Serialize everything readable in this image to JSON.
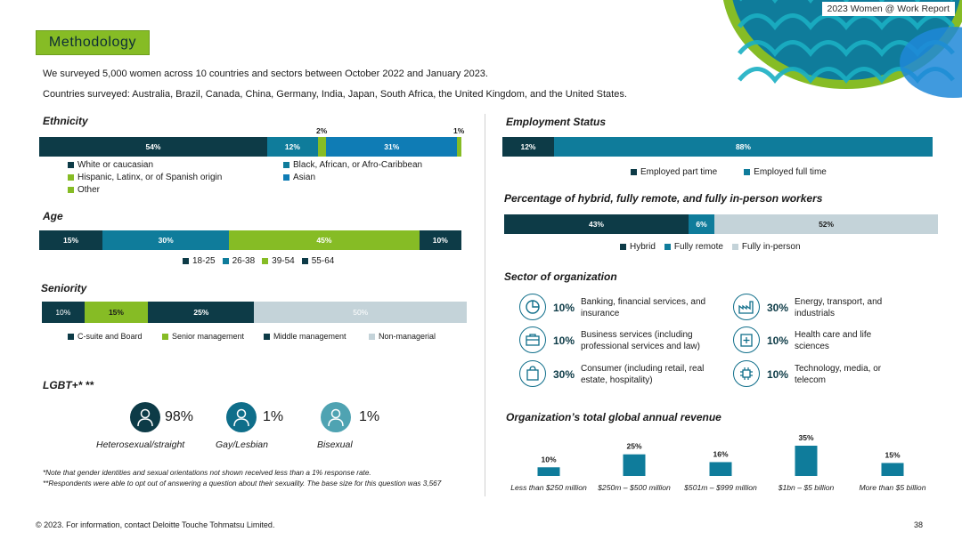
{
  "header": {
    "report_tag": "2023 Women @ Work Report",
    "title": "Methodology"
  },
  "intro": {
    "line1": "We surveyed 5,000 women across 10 countries and sectors between October 2022 and January 2023.",
    "line2": "Countries surveyed: Australia, Brazil, Canada, China, Germany, India, Japan, South Africa, the United Kingdom, and the United States."
  },
  "colors": {
    "dark": "#0d3b47",
    "teal": "#0f7c9b",
    "green": "#86bc25",
    "light": "#c4d3d9"
  },
  "ethnicity": {
    "title": "Ethnicity",
    "segments": [
      {
        "name": "White or caucasian",
        "value": 54,
        "label": "54%"
      },
      {
        "name": "Black, African, or Afro-Caribbean",
        "value": 12,
        "label": "12%"
      },
      {
        "name": "Hispanic, Latinx, or of Spanish origin",
        "value": 2,
        "label": "2%"
      },
      {
        "name": "Asian",
        "value": 31,
        "label": "31%"
      },
      {
        "name": "Other",
        "value": 1,
        "label": "1%"
      }
    ]
  },
  "age": {
    "title": "Age",
    "segments": [
      {
        "name": "18-25",
        "value": 15,
        "label": "15%"
      },
      {
        "name": "26-38",
        "value": 30,
        "label": "30%"
      },
      {
        "name": "39-54",
        "value": 45,
        "label": "45%"
      },
      {
        "name": "55-64",
        "value": 10,
        "label": "10%"
      }
    ]
  },
  "seniority": {
    "title": "Seniority",
    "segments": [
      {
        "name": "C-suite and Board",
        "value": 10,
        "label": "10%"
      },
      {
        "name": "Senior management",
        "value": 15,
        "label": "15%"
      },
      {
        "name": "Middle management",
        "value": 25,
        "label": "25%"
      },
      {
        "name": "Non-managerial",
        "value": 50,
        "label": "50%"
      }
    ]
  },
  "lgbt": {
    "title": "LGBT+* **",
    "items": [
      {
        "pct": "98%",
        "label": "Heterosexual/straight"
      },
      {
        "pct": "1%",
        "label": "Gay/Lesbian"
      },
      {
        "pct": "1%",
        "label": "Bisexual"
      }
    ],
    "note1": "*Note that gender identities and sexual orientations not shown received less than a 1% response rate.",
    "note2": "**Respondents were able to opt out of answering a question about their sexuality. The base size for this question was 3,567"
  },
  "employment": {
    "title": "Employment Status",
    "segments": [
      {
        "name": "Employed part time",
        "value": 12,
        "label": "12%"
      },
      {
        "name": "Employed full time",
        "value": 88,
        "label": "88%"
      }
    ]
  },
  "hybrid": {
    "title": "Percentage of hybrid, fully remote, and fully in-person workers",
    "segments": [
      {
        "name": "Hybrid",
        "value": 43,
        "label": "43%"
      },
      {
        "name": "Fully remote",
        "value": 6,
        "label": "6%"
      },
      {
        "name": "Fully in-person",
        "value": 52,
        "label": "52%"
      }
    ]
  },
  "sector": {
    "title": "Sector of organization",
    "items": [
      {
        "pct": "10%",
        "label": "Banking, financial services, and insurance",
        "icon": "pie-chart-icon"
      },
      {
        "pct": "30%",
        "label": "Energy, transport, and industrials",
        "icon": "factory-icon"
      },
      {
        "pct": "10%",
        "label": "Business services (including professional services and law)",
        "icon": "briefcase-icon"
      },
      {
        "pct": "10%",
        "label": "Health care and life sciences",
        "icon": "medical-icon"
      },
      {
        "pct": "30%",
        "label": "Consumer (including retail, real estate, hospitality)",
        "icon": "shopping-bag-icon"
      },
      {
        "pct": "10%",
        "label": "Technology, media, or telecom",
        "icon": "chip-icon"
      }
    ]
  },
  "chart_data": {
    "type": "bar",
    "title": "Organization’s total global annual revenue",
    "categories": [
      "Less than $250 million",
      "$250m – $500 million",
      "$501m – $999 million",
      "$1bn – $5 billion",
      "More than $5 billion"
    ],
    "values": [
      10,
      25,
      16,
      35,
      15
    ],
    "labels": [
      "10%",
      "25%",
      "16%",
      "35%",
      "15%"
    ],
    "ylim": [
      0,
      35
    ],
    "grid": false
  },
  "footer": {
    "copyright": "© 2023. For information, contact Deloitte Touche Tohmatsu Limited.",
    "page_number": "38"
  }
}
